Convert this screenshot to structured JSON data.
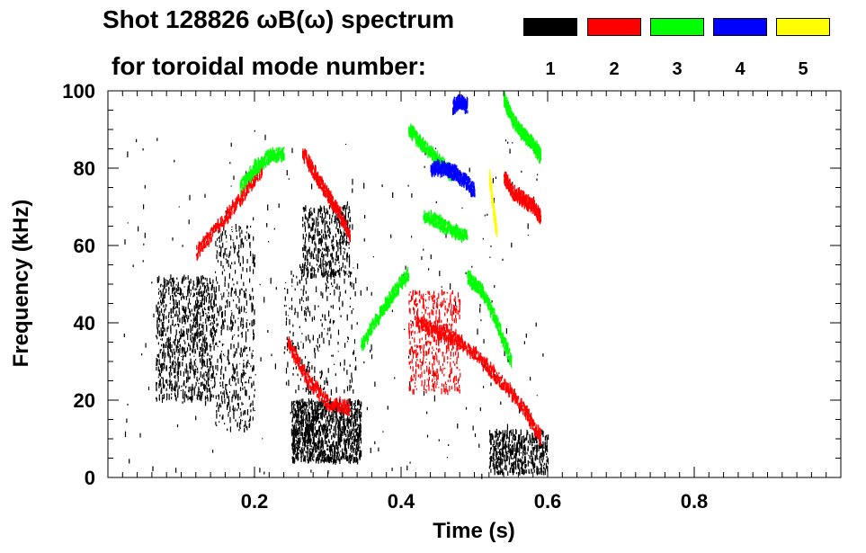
{
  "chart_data": {
    "type": "scatter",
    "title": "Shot 128826 ωB(ω) spectrum",
    "subtitle": "for toroidal mode number:",
    "xlabel": "Time (s)",
    "ylabel": "Frequency (kHz)",
    "xlim": [
      0.0,
      1.0
    ],
    "ylim": [
      0,
      100
    ],
    "xticks": [
      0.2,
      0.4,
      0.6,
      0.8
    ],
    "xtick_labels": [
      "0.2",
      "0.4",
      "0.6",
      "0.8"
    ],
    "yticks": [
      0,
      20,
      40,
      60,
      80,
      100
    ],
    "ytick_labels": [
      "0",
      "20",
      "40",
      "60",
      "80",
      "100"
    ],
    "legend": [
      {
        "label": "1",
        "color": "#000000"
      },
      {
        "label": "2",
        "color": "#ff0000"
      },
      {
        "label": "3",
        "color": "#00ff00"
      },
      {
        "label": "4",
        "color": "#0000ff"
      },
      {
        "label": "5",
        "color": "#ffff00"
      }
    ],
    "series": [
      {
        "name": "n=1",
        "color": "#000000",
        "regions": [
          {
            "t0": 0.065,
            "t1": 0.145,
            "f0": 20,
            "f1": 52,
            "n": 900
          },
          {
            "t0": 0.145,
            "t1": 0.2,
            "f0": 12,
            "f1": 65,
            "n": 450
          },
          {
            "t0": 0.25,
            "t1": 0.345,
            "f0": 4,
            "f1": 20,
            "n": 1100
          },
          {
            "t0": 0.265,
            "t1": 0.33,
            "f0": 52,
            "f1": 70,
            "n": 400
          },
          {
            "t0": 0.52,
            "t1": 0.6,
            "f0": 1,
            "f1": 12,
            "n": 500
          },
          {
            "t0": 0.24,
            "t1": 0.34,
            "f0": 22,
            "f1": 55,
            "n": 250
          },
          {
            "t0": 0.02,
            "t1": 0.6,
            "f0": 0,
            "f1": 90,
            "n": 260
          }
        ]
      },
      {
        "name": "n=2",
        "color": "#ff0000",
        "curves": [
          {
            "x": [
              0.12,
              0.15,
              0.18,
              0.21
            ],
            "y": [
              58,
              65,
              72,
              80
            ]
          },
          {
            "x": [
              0.245,
              0.27,
              0.3,
              0.33
            ],
            "y": [
              35,
              26,
              19,
              18
            ]
          },
          {
            "x": [
              0.265,
              0.29,
              0.31,
              0.33
            ],
            "y": [
              84,
              76,
              70,
              63
            ]
          },
          {
            "x": [
              0.42,
              0.45,
              0.48,
              0.51,
              0.54,
              0.57,
              0.59
            ],
            "y": [
              40,
              38,
              35,
              30,
              24,
              17,
              10
            ]
          },
          {
            "x": [
              0.54,
              0.55,
              0.565,
              0.58,
              0.59
            ],
            "y": [
              78,
              74,
              72,
              70,
              67
            ]
          }
        ],
        "regions": [
          {
            "t0": 0.41,
            "t1": 0.48,
            "f0": 22,
            "f1": 48,
            "n": 500
          }
        ]
      },
      {
        "name": "n=3",
        "color": "#00ff00",
        "curves": [
          {
            "x": [
              0.18,
              0.2,
              0.22,
              0.24
            ],
            "y": [
              75,
              80,
              83,
              84
            ]
          },
          {
            "x": [
              0.345,
              0.37,
              0.39,
              0.41
            ],
            "y": [
              34,
              42,
              48,
              53
            ]
          },
          {
            "x": [
              0.41,
              0.43,
              0.45,
              0.47
            ],
            "y": [
              90,
              86,
              82,
              78
            ]
          },
          {
            "x": [
              0.43,
              0.45,
              0.47,
              0.49
            ],
            "y": [
              68,
              66,
              64,
              62
            ]
          },
          {
            "x": [
              0.54,
              0.55,
              0.565,
              0.58,
              0.59
            ],
            "y": [
              98,
              93,
              89,
              86,
              83
            ]
          },
          {
            "x": [
              0.49,
              0.51,
              0.53,
              0.55
            ],
            "y": [
              52,
              48,
              40,
              30
            ]
          }
        ]
      },
      {
        "name": "n=4",
        "color": "#0000ff",
        "curves": [
          {
            "x": [
              0.44,
              0.455,
              0.47,
              0.485,
              0.5
            ],
            "y": [
              80,
              80,
              79,
              77,
              74
            ]
          },
          {
            "x": [
              0.47,
              0.48,
              0.49
            ],
            "y": [
              96,
              97,
              96
            ]
          }
        ]
      },
      {
        "name": "n=5",
        "color": "#ffff00",
        "curves": [
          {
            "x": [
              0.52,
              0.525,
              0.53
            ],
            "y": [
              78,
              70,
              63
            ]
          }
        ]
      }
    ]
  }
}
